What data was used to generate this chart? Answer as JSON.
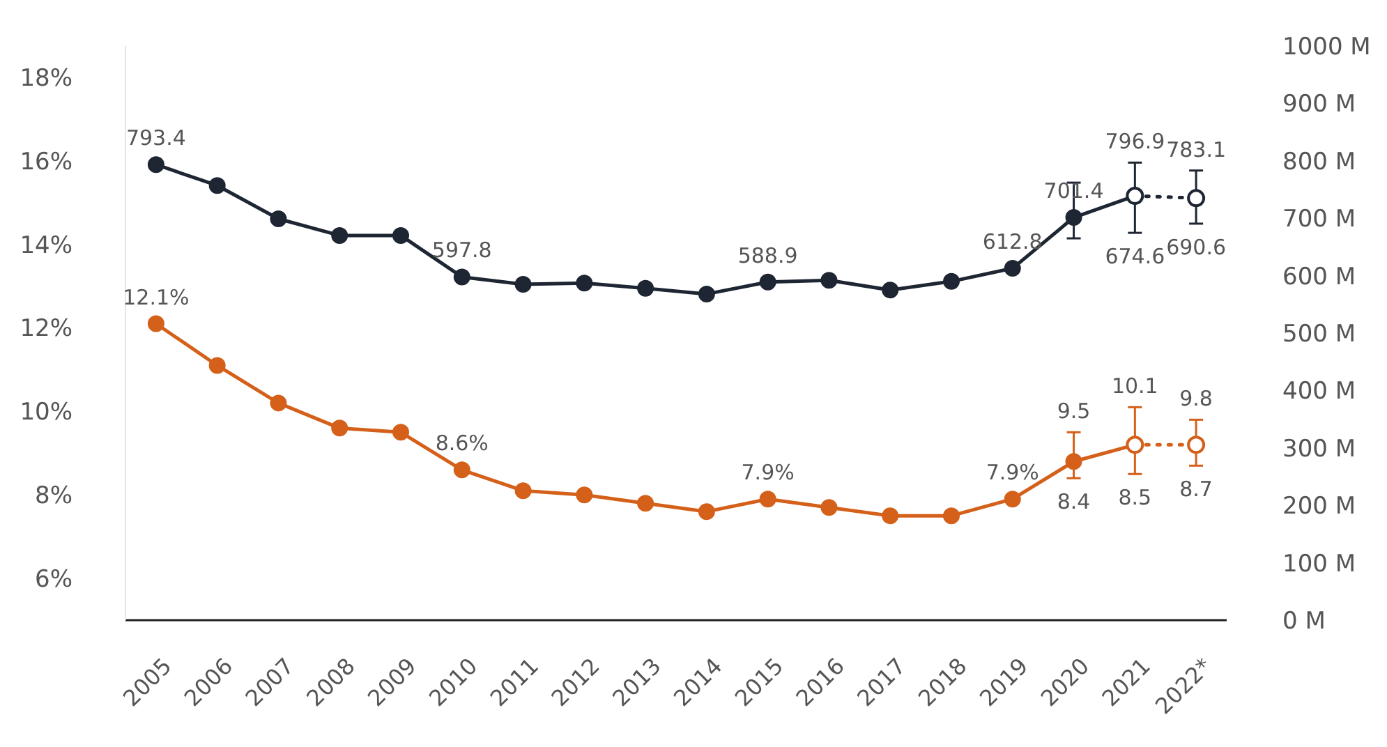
{
  "chart_data": {
    "type": "line",
    "categories": [
      "2005",
      "2006",
      "2007",
      "2008",
      "2009",
      "2010",
      "2011",
      "2012",
      "2013",
      "2014",
      "2015",
      "2016",
      "2017",
      "2018",
      "2019",
      "2020",
      "2021",
      "2022*"
    ],
    "ylim": [
      5,
      18.75
    ],
    "yticks": [
      {
        "value": 6,
        "label": "6%"
      },
      {
        "value": 8,
        "label": "8%"
      },
      {
        "value": 10,
        "label": "10%"
      },
      {
        "value": 12,
        "label": "12%"
      },
      {
        "value": 14,
        "label": "14%"
      },
      {
        "value": 16,
        "label": "16%"
      },
      {
        "value": 18,
        "label": "18%"
      }
    ],
    "y2lim": [
      0,
      1000
    ],
    "y2ticks": [
      {
        "value": 0,
        "label": "0 M"
      },
      {
        "value": 100,
        "label": "100 M"
      },
      {
        "value": 200,
        "label": "200 M"
      },
      {
        "value": 300,
        "label": "300 M"
      },
      {
        "value": 400,
        "label": "400 M"
      },
      {
        "value": 500,
        "label": "500 M"
      },
      {
        "value": 600,
        "label": "600 M"
      },
      {
        "value": 700,
        "label": "700 M"
      },
      {
        "value": 800,
        "label": "800 M"
      },
      {
        "value": 900,
        "label": "900 M"
      },
      {
        "value": 1000,
        "label": "1000 M"
      }
    ],
    "marker": "circle",
    "grid": false,
    "series": [
      {
        "color": "#1e2633",
        "axis": "y2",
        "line_style": "solid",
        "values": [
          793.4,
          757,
          699,
          670,
          670,
          597.8,
          585,
          587,
          578,
          568,
          588.9,
          592,
          575,
          590,
          612.8,
          701.4,
          739,
          null
        ],
        "errors": [
          null,
          null,
          null,
          null,
          null,
          null,
          null,
          null,
          null,
          null,
          null,
          null,
          null,
          null,
          null,
          [
            665,
            762
          ],
          [
            674.6,
            796.9
          ],
          null
        ],
        "value_labels": [
          "793.4",
          null,
          null,
          null,
          null,
          "597.8",
          null,
          null,
          null,
          null,
          "588.9",
          null,
          null,
          null,
          "612.8",
          "701.4",
          null,
          null
        ]
      },
      {
        "color": "#1e2633",
        "axis": "y2",
        "line_style": "dotted",
        "values": [
          null,
          null,
          null,
          null,
          null,
          null,
          null,
          null,
          null,
          null,
          null,
          null,
          null,
          null,
          null,
          null,
          739,
          735
        ],
        "errors": [
          null,
          null,
          null,
          null,
          null,
          null,
          null,
          null,
          null,
          null,
          null,
          null,
          null,
          null,
          null,
          null,
          null,
          [
            690.6,
            783.1
          ]
        ]
      },
      {
        "color": "#d4601a",
        "line_style": "solid",
        "values": [
          12.1,
          11.1,
          10.2,
          9.6,
          9.5,
          8.6,
          8.1,
          8.0,
          7.8,
          7.6,
          7.9,
          7.7,
          7.5,
          7.5,
          7.9,
          8.8,
          9.2,
          null
        ],
        "errors": [
          null,
          null,
          null,
          null,
          null,
          null,
          null,
          null,
          null,
          null,
          null,
          null,
          null,
          null,
          null,
          [
            8.4,
            9.5
          ],
          [
            8.5,
            10.1
          ],
          null
        ],
        "value_labels": [
          "12.1%",
          null,
          null,
          null,
          null,
          "8.6%",
          null,
          null,
          null,
          null,
          "7.9%",
          null,
          null,
          null,
          "7.9%",
          null,
          null,
          null
        ]
      },
      {
        "color": "#d4601a",
        "line_style": "dotted",
        "values": [
          null,
          null,
          null,
          null,
          null,
          null,
          null,
          null,
          null,
          null,
          null,
          null,
          null,
          null,
          null,
          null,
          9.2,
          9.2
        ],
        "errors": [
          null,
          null,
          null,
          null,
          null,
          null,
          null,
          null,
          null,
          null,
          null,
          null,
          null,
          null,
          null,
          null,
          null,
          [
            8.7,
            9.8
          ]
        ]
      }
    ],
    "annotations": [
      "796.9",
      "674.6",
      "783.1",
      "690.6",
      {
        "text": "9.5",
        "x": "2020",
        "y": 9.5
      },
      {
        "text": "8.4",
        "x": "2020",
        "y": 8.4
      },
      {
        "text": "10.1",
        "x": "2021",
        "y": 10.1
      },
      {
        "text": "8.5",
        "x": "2021",
        "y": 8.5
      },
      {
        "text": "9.8",
        "x": "2022*",
        "y": 9.8
      },
      {
        "text": "8.7",
        "x": "2022*",
        "y": 8.7
      }
    ]
  }
}
